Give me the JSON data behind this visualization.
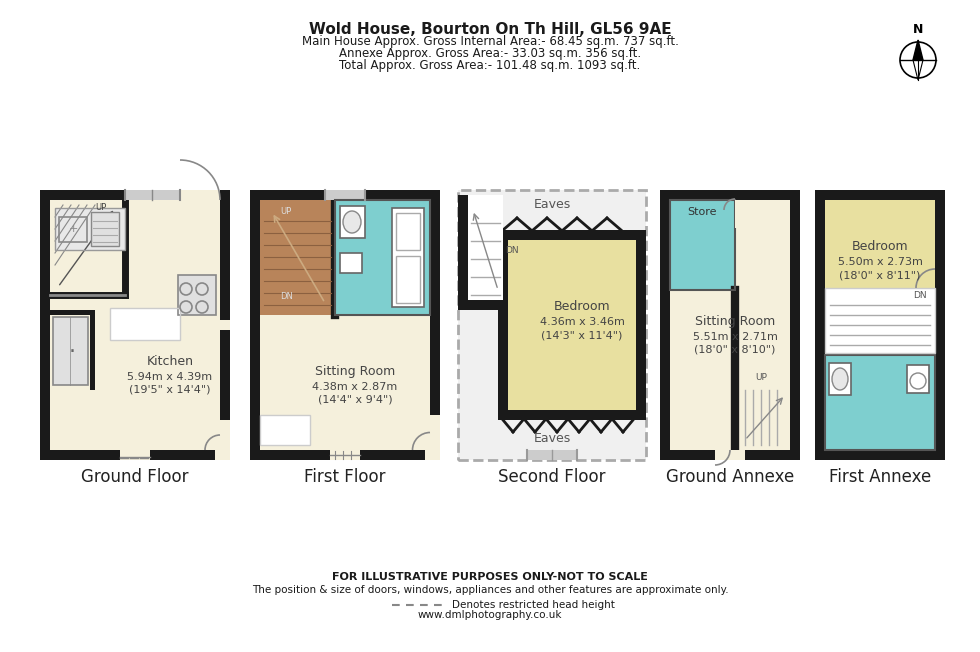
{
  "title": "Wold House, Bourton On Th Hill, GL56 9AE",
  "subtitle1": "Main House Approx. Gross Internal Area:- 68.45 sq.m. 737 sq.ft.",
  "subtitle2": "Annexe Approx. Gross Area:- 33.03 sq.m. 356 sq.ft.",
  "subtitle3": "Total Approx. Gross Area:- 101.48 sq.m. 1093 sq.ft.",
  "footer1": "FOR ILLUSTRATIVE PURPOSES ONLY-NOT TO SCALE",
  "footer2": "The position & size of doors, windows, appliances and other features are approximate only.",
  "footer3": "Denotes restricted head height",
  "footer4": "www.dmlphotography.co.uk",
  "bg_color": "#ffffff",
  "wall_color": "#1a1a1a",
  "cream": "#f5f0dc",
  "teal": "#7ecfcf",
  "brown": "#b8845a",
  "yellow": "#e8e0a0",
  "floor_labels": [
    "Ground Floor",
    "First Floor",
    "Second Floor",
    "Ground Annexe",
    "First Annexe"
  ]
}
